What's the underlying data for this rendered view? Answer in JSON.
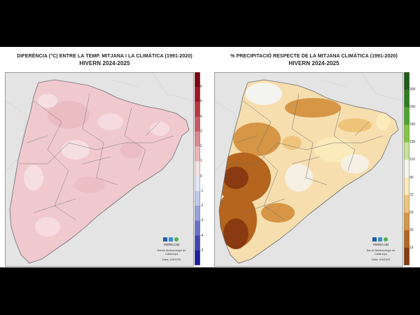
{
  "left_panel": {
    "title": "DIFERÈNCIA (°C) ENTRE LA TEMP. MITJANA I LA CLIMÀTICA (1991-2020)",
    "subtitle": "HIVERN 2024-2025",
    "legend_ticks": [
      "6",
      "5",
      "4",
      "3",
      "2",
      "1",
      "0",
      "-1",
      "-2",
      "-3",
      "-4",
      "-5"
    ],
    "legend_colors": [
      "#7a0012",
      "#9e1626",
      "#b83642",
      "#c95a64",
      "#d98a92",
      "#e8b6bc",
      "#f6dfe2",
      "#e3e6f4",
      "#c3c7e8",
      "#9aa0da",
      "#6a71c9",
      "#3e46b3",
      "#1a219a"
    ],
    "logo": {
      "name": "meteo.cat",
      "org": "Servei Meteorològic de Catalunya",
      "date": "Data: 4/3/2025"
    }
  },
  "right_panel": {
    "title": "% PRECIPITACIÓ RESPECTE DE LA MITJANA CLIMÀTICA (1991-2020)",
    "subtitle": "HIVERN 2024-2025",
    "legend_ticks": [
      "300",
      "200",
      "150",
      "130",
      "110",
      "90",
      "70",
      "50",
      "30",
      "15"
    ],
    "legend_colors": [
      "#1e5a18",
      "#2f7d22",
      "#4ea52c",
      "#86c444",
      "#c4e29a",
      "#f4f4f0",
      "#fbeaba",
      "#efc47a",
      "#d69646",
      "#b5651d",
      "#8a3a10"
    ],
    "logo": {
      "name": "meteo.cat",
      "org": "Servei Meteorològic de Catalunya",
      "date": "Data: 4/3/2025"
    }
  },
  "colors": {
    "outside": "#e4e4e4",
    "border": "#6d6d6d",
    "temp_base": "#f0c9cf",
    "precip_base": "#f7deae"
  }
}
